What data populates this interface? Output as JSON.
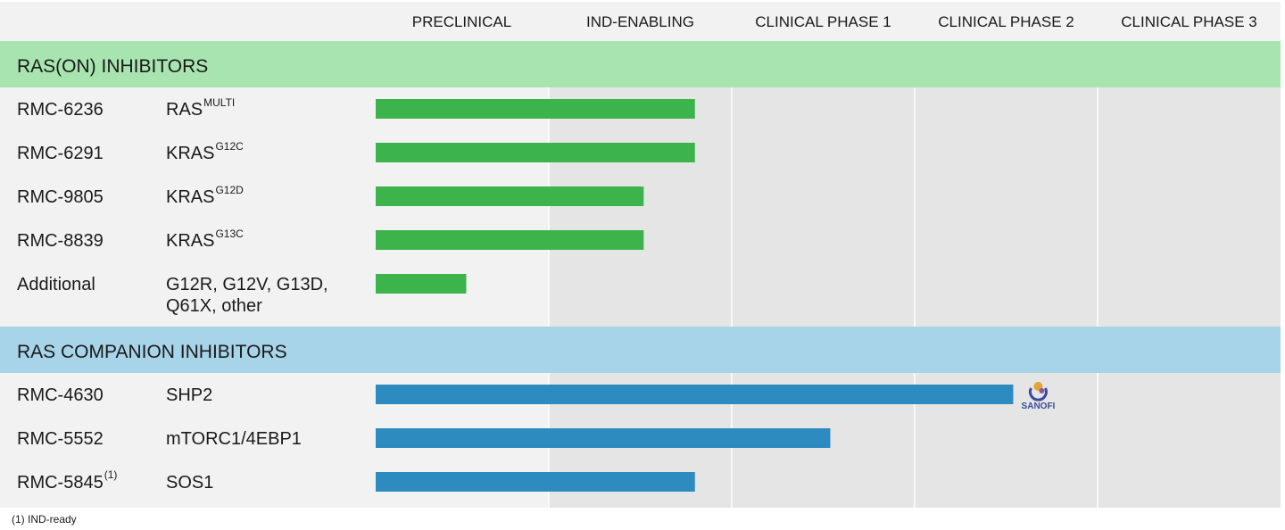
{
  "chart_data": {
    "type": "bar",
    "orientation": "horizontal",
    "stages": [
      "PRECLINICAL",
      "IND-ENABLING",
      "CLINICAL PHASE 1",
      "CLINICAL PHASE 2",
      "CLINICAL PHASE 3"
    ],
    "groups": [
      {
        "name": "RAS(ON) INHIBITORS",
        "color": "#3cb44b",
        "band_color": "#a8e4b0",
        "programs": [
          {
            "name": "RMC-6236",
            "name_sup": "",
            "target": "RAS",
            "target_sup": "MULTI",
            "progress": 1.75
          },
          {
            "name": "RMC-6291",
            "name_sup": "",
            "target": "KRAS",
            "target_sup": "G12C",
            "progress": 1.75
          },
          {
            "name": "RMC-9805",
            "name_sup": "",
            "target": "KRAS",
            "target_sup": "G12D",
            "progress": 1.47
          },
          {
            "name": "RMC-8839",
            "name_sup": "",
            "target": "KRAS",
            "target_sup": "G13C",
            "progress": 1.47
          },
          {
            "name": "Additional",
            "name_sup": "",
            "target": "G12R, G12V, G13D,",
            "target_line2": "Q61X, other",
            "target_sup": "",
            "progress": 0.5
          }
        ]
      },
      {
        "name": "RAS COMPANION INHIBITORS",
        "color": "#2e8bc0",
        "band_color": "#a8d4ea",
        "programs": [
          {
            "name": "RMC-4630",
            "name_sup": "",
            "target": "SHP2",
            "target_sup": "",
            "progress": 3.49,
            "partner": "SANOFI"
          },
          {
            "name": "RMC-5552",
            "name_sup": "",
            "target": "mTORC1/4EBP1",
            "target_sup": "",
            "progress": 2.49
          },
          {
            "name": "RMC-5845",
            "name_sup": "(1)",
            "target": "SOS1",
            "target_sup": "",
            "progress": 1.75
          }
        ]
      }
    ],
    "grid": true
  },
  "footnote": "(1) IND-ready",
  "colors": {
    "header_bg": "#f2f2f2",
    "col_light": "#f2f2f2",
    "col_dark": "#e5e5e5",
    "label_bg": "#f2f2f2",
    "divider": "#ffffff"
  }
}
